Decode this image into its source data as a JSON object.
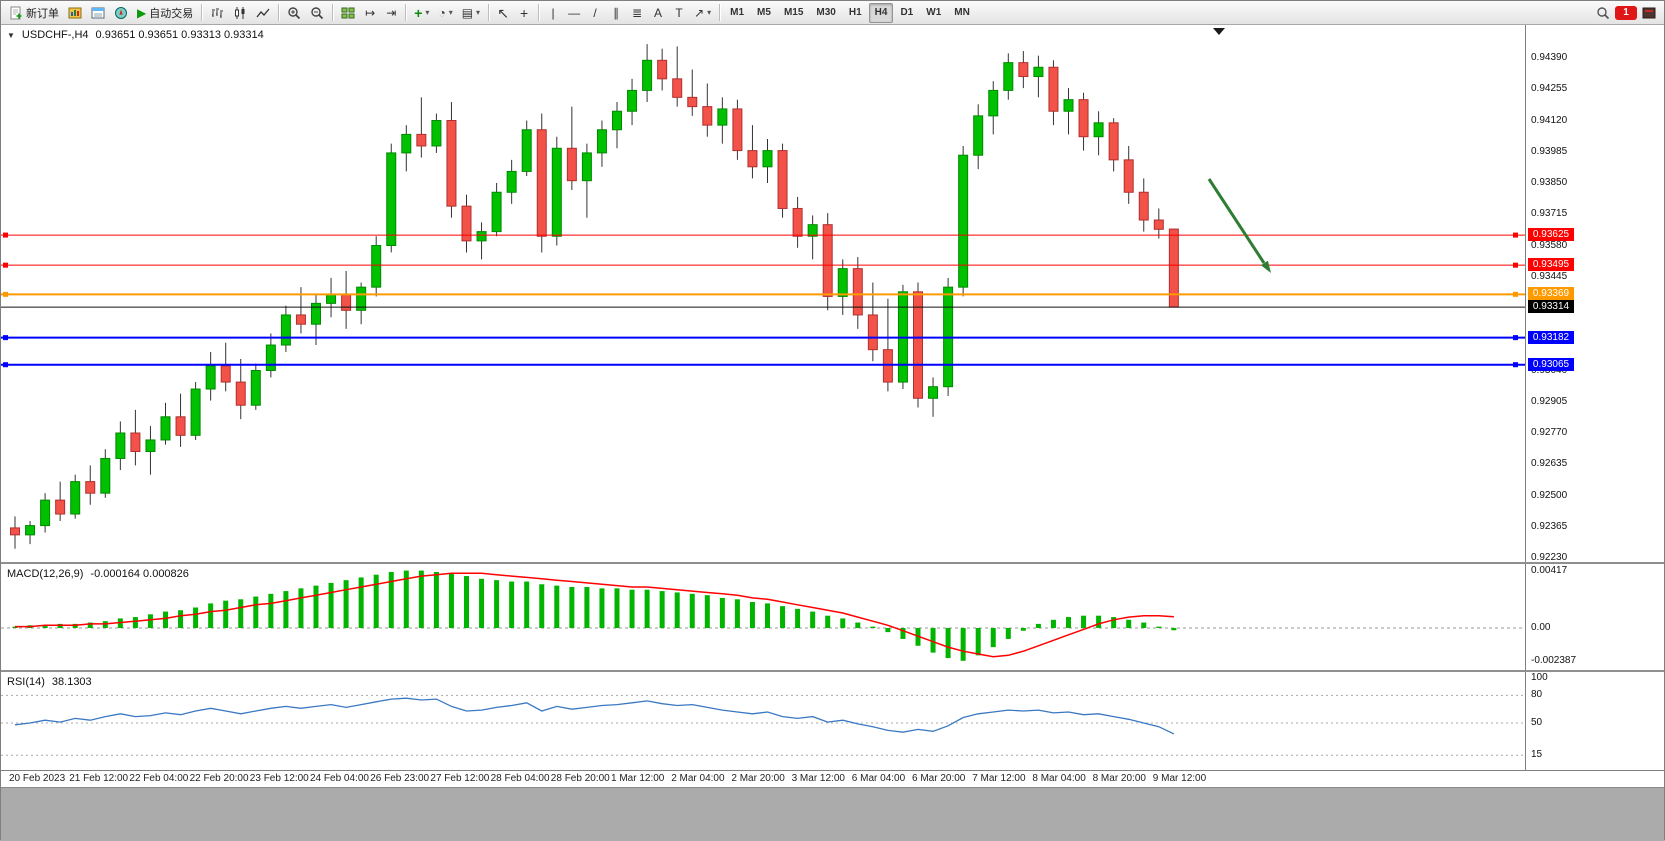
{
  "toolbar": {
    "new_order_label": "新订单",
    "autotrading_label": "自动交易",
    "timeframes": [
      "M1",
      "M5",
      "M15",
      "M30",
      "H1",
      "H4",
      "D1",
      "W1",
      "MN"
    ],
    "active_timeframe": "H4",
    "notification_count": "1"
  },
  "icons": {
    "collapse": "▼",
    "play": "▶",
    "dropdown": "▾",
    "indicator_plus": "+",
    "clock": "◔",
    "template": "▤",
    "cursor": "↖",
    "crosshair": "+",
    "vertical_line": "|",
    "horizontal_line": "—",
    "trendline": "/",
    "channel": "∥",
    "fibonacci": "≣",
    "text": "A",
    "text_label": "T",
    "arrows": "↗",
    "shift_end": "↦",
    "auto_scroll": "⇥"
  },
  "chart": {
    "symbol_title": "USDCHF-,H4",
    "ohlc_title": "0.93651 0.93651 0.93313 0.93314"
  },
  "macd": {
    "title": "MACD(12,26,9)",
    "values": "-0.000164 0.000826"
  },
  "rsi": {
    "title": "RSI(14)",
    "value": "38.1303"
  },
  "chart_data": [
    {
      "type": "candlestick",
      "symbol": "USDCHF-",
      "timeframe": "H4",
      "ohlc_display": {
        "open": "0.93651",
        "high": "0.93651",
        "low": "0.93313",
        "close": "0.93314"
      },
      "y_axis": {
        "top": 0.9439,
        "bottom": 0.9223,
        "step": 0.00135,
        "labels": [
          "0.94390",
          "0.94255",
          "0.94120",
          "0.93985",
          "0.93850",
          "0.93715",
          "0.93580",
          "0.93445",
          "0.93310",
          "0.93175",
          "0.93040",
          "0.92905",
          "0.92770",
          "0.92635",
          "0.92500",
          "0.92365",
          "0.92230"
        ]
      },
      "x_labels": [
        "20 Feb 2023",
        "21 Feb 12:00",
        "22 Feb 04:00",
        "22 Feb 20:00",
        "23 Feb 12:00",
        "24 Feb 04:00",
        "26 Feb 23:00",
        "27 Feb 12:00",
        "28 Feb 04:00",
        "28 Feb 20:00",
        "1 Mar 12:00",
        "2 Mar 04:00",
        "2 Mar 20:00",
        "3 Mar 12:00",
        "6 Mar 04:00",
        "6 Mar 20:00",
        "7 Mar 12:00",
        "8 Mar 04:00",
        "8 Mar 20:00",
        "9 Mar 12:00"
      ],
      "candles": [
        [
          0.9236,
          0.9241,
          0.9227,
          0.9233
        ],
        [
          0.9233,
          0.9239,
          0.9229,
          0.9237
        ],
        [
          0.9237,
          0.9251,
          0.9234,
          0.9248
        ],
        [
          0.9248,
          0.9256,
          0.9239,
          0.9242
        ],
        [
          0.9242,
          0.9259,
          0.924,
          0.9256
        ],
        [
          0.9256,
          0.9263,
          0.9246,
          0.9251
        ],
        [
          0.9251,
          0.927,
          0.9249,
          0.9266
        ],
        [
          0.9266,
          0.9282,
          0.9261,
          0.9277
        ],
        [
          0.9277,
          0.9287,
          0.9263,
          0.9269
        ],
        [
          0.9269,
          0.928,
          0.9259,
          0.9274
        ],
        [
          0.9274,
          0.929,
          0.9272,
          0.9284
        ],
        [
          0.9284,
          0.9294,
          0.9271,
          0.9276
        ],
        [
          0.9276,
          0.9299,
          0.9274,
          0.9296
        ],
        [
          0.9296,
          0.9312,
          0.9291,
          0.9306
        ],
        [
          0.9306,
          0.9316,
          0.9295,
          0.9299
        ],
        [
          0.9299,
          0.9309,
          0.9283,
          0.9289
        ],
        [
          0.9289,
          0.9307,
          0.9287,
          0.9304
        ],
        [
          0.9304,
          0.932,
          0.9301,
          0.9315
        ],
        [
          0.9315,
          0.9332,
          0.9312,
          0.9328
        ],
        [
          0.9328,
          0.934,
          0.932,
          0.9324
        ],
        [
          0.9324,
          0.9337,
          0.9315,
          0.9333
        ],
        [
          0.9333,
          0.9344,
          0.9327,
          0.9337
        ],
        [
          0.9337,
          0.9347,
          0.9322,
          0.933
        ],
        [
          0.933,
          0.9342,
          0.9324,
          0.934
        ],
        [
          0.934,
          0.9362,
          0.9336,
          0.9358
        ],
        [
          0.9358,
          0.9402,
          0.9355,
          0.9398
        ],
        [
          0.9398,
          0.941,
          0.939,
          0.9406
        ],
        [
          0.9406,
          0.9422,
          0.9396,
          0.9401
        ],
        [
          0.9401,
          0.9415,
          0.9398,
          0.9412
        ],
        [
          0.9412,
          0.942,
          0.937,
          0.9375
        ],
        [
          0.9375,
          0.938,
          0.9355,
          0.936
        ],
        [
          0.936,
          0.9368,
          0.9352,
          0.9364
        ],
        [
          0.9364,
          0.9385,
          0.9362,
          0.9381
        ],
        [
          0.9381,
          0.9395,
          0.9376,
          0.939
        ],
        [
          0.939,
          0.9412,
          0.9388,
          0.9408
        ],
        [
          0.9408,
          0.9415,
          0.9355,
          0.9362
        ],
        [
          0.9362,
          0.9405,
          0.9358,
          0.94
        ],
        [
          0.94,
          0.9418,
          0.9382,
          0.9386
        ],
        [
          0.9386,
          0.9402,
          0.937,
          0.9398
        ],
        [
          0.9398,
          0.9412,
          0.9392,
          0.9408
        ],
        [
          0.9408,
          0.942,
          0.94,
          0.9416
        ],
        [
          0.9416,
          0.943,
          0.941,
          0.9425
        ],
        [
          0.9425,
          0.9445,
          0.942,
          0.9438
        ],
        [
          0.9438,
          0.9443,
          0.9425,
          0.943
        ],
        [
          0.943,
          0.9444,
          0.9418,
          0.9422
        ],
        [
          0.9422,
          0.9434,
          0.9414,
          0.9418
        ],
        [
          0.9418,
          0.9428,
          0.9405,
          0.941
        ],
        [
          0.941,
          0.9422,
          0.9402,
          0.9417
        ],
        [
          0.9417,
          0.9421,
          0.9395,
          0.9399
        ],
        [
          0.9399,
          0.941,
          0.9387,
          0.9392
        ],
        [
          0.9392,
          0.9404,
          0.9385,
          0.9399
        ],
        [
          0.9399,
          0.9402,
          0.937,
          0.9374
        ],
        [
          0.9374,
          0.9379,
          0.9357,
          0.9362
        ],
        [
          0.9362,
          0.9371,
          0.9352,
          0.9367
        ],
        [
          0.9367,
          0.9372,
          0.933,
          0.9336
        ],
        [
          0.9336,
          0.9352,
          0.9328,
          0.9348
        ],
        [
          0.9348,
          0.9353,
          0.9322,
          0.9328
        ],
        [
          0.9328,
          0.9342,
          0.9308,
          0.9313
        ],
        [
          0.9313,
          0.9335,
          0.9295,
          0.9299
        ],
        [
          0.9299,
          0.9341,
          0.9296,
          0.9338
        ],
        [
          0.9338,
          0.9342,
          0.9288,
          0.9292
        ],
        [
          0.9292,
          0.9301,
          0.9284,
          0.9297
        ],
        [
          0.9297,
          0.9344,
          0.9293,
          0.934
        ],
        [
          0.934,
          0.9401,
          0.9336,
          0.9397
        ],
        [
          0.9397,
          0.9419,
          0.9391,
          0.9414
        ],
        [
          0.9414,
          0.9429,
          0.9406,
          0.9425
        ],
        [
          0.9425,
          0.9441,
          0.9421,
          0.9437
        ],
        [
          0.9437,
          0.9442,
          0.9426,
          0.9431
        ],
        [
          0.9431,
          0.944,
          0.9422,
          0.9435
        ],
        [
          0.9435,
          0.9438,
          0.941,
          0.9416
        ],
        [
          0.9416,
          0.9426,
          0.9406,
          0.9421
        ],
        [
          0.9421,
          0.9424,
          0.9399,
          0.9405
        ],
        [
          0.9405,
          0.9416,
          0.9397,
          0.9411
        ],
        [
          0.9411,
          0.9413,
          0.939,
          0.9395
        ],
        [
          0.9395,
          0.9401,
          0.9376,
          0.9381
        ],
        [
          0.9381,
          0.9387,
          0.9364,
          0.9369
        ],
        [
          0.9369,
          0.9374,
          0.9361,
          0.9365
        ],
        [
          0.93651,
          0.93651,
          0.93313,
          0.93314
        ]
      ],
      "hlines": [
        {
          "label": "0.93625",
          "value": 0.93625,
          "color": "#ff0000",
          "width": 1
        },
        {
          "label": "0.93495",
          "value": 0.93495,
          "color": "#ff0000",
          "width": 1
        },
        {
          "label": "0.93369",
          "value": 0.93369,
          "color": "#ff9900",
          "width": 2
        },
        {
          "label": "0.93182",
          "value": 0.93182,
          "color": "#0000ff",
          "width": 2
        },
        {
          "label": "0.93065",
          "value": 0.93065,
          "color": "#0000ff",
          "width": 2
        }
      ],
      "current_price": {
        "label": "0.93314",
        "value": 0.93314,
        "color": "#000000"
      },
      "annotation": {
        "type": "arrow",
        "direction": "down-right",
        "color": "#2e7d32"
      },
      "colors": {
        "up": "#00c100",
        "down": "#f25247",
        "up_border": "#008a00",
        "down_border": "#b03030",
        "wick": "#333333"
      }
    },
    {
      "type": "bar+line",
      "title": "MACD(12,26,9)",
      "values_display": "-0.000164 0.000826",
      "axis_labels": [
        "0.00417",
        "0.00",
        "-0.002387"
      ],
      "histogram": [
        0.0001,
        0.0002,
        0.0002,
        0.0003,
        0.0003,
        0.0004,
        0.0005,
        0.0007,
        0.0008,
        0.001,
        0.0012,
        0.0013,
        0.0015,
        0.0018,
        0.002,
        0.0021,
        0.0023,
        0.0025,
        0.0027,
        0.0029,
        0.0031,
        0.0033,
        0.0035,
        0.0037,
        0.0039,
        0.0041,
        0.0042,
        0.0042,
        0.0041,
        0.004,
        0.0038,
        0.0036,
        0.0035,
        0.0034,
        0.0034,
        0.0032,
        0.0031,
        0.003,
        0.003,
        0.0029,
        0.0029,
        0.0028,
        0.0028,
        0.0027,
        0.0026,
        0.0025,
        0.0024,
        0.0022,
        0.0021,
        0.0019,
        0.0018,
        0.0016,
        0.0014,
        0.0012,
        0.0009,
        0.0007,
        0.0004,
        0.0001,
        -0.0003,
        -0.0008,
        -0.0013,
        -0.0018,
        -0.0022,
        -0.0024,
        -0.002,
        -0.0014,
        -0.0008,
        -0.0002,
        0.0003,
        0.0006,
        0.0008,
        0.0009,
        0.0009,
        0.0008,
        0.0006,
        0.0004,
        0.0001,
        -0.000164
      ],
      "signal": [
        0.0001,
        0.0001,
        0.0002,
        0.0002,
        0.0002,
        0.0003,
        0.0003,
        0.0004,
        0.0005,
        0.0006,
        0.0007,
        0.0009,
        0.001,
        0.0012,
        0.0013,
        0.0015,
        0.0017,
        0.0018,
        0.002,
        0.0022,
        0.0024,
        0.0026,
        0.0028,
        0.003,
        0.0032,
        0.0034,
        0.0036,
        0.0038,
        0.0039,
        0.004,
        0.004,
        0.004,
        0.0039,
        0.0038,
        0.0037,
        0.0036,
        0.0035,
        0.0034,
        0.0033,
        0.0032,
        0.0031,
        0.003,
        0.003,
        0.0029,
        0.0028,
        0.0027,
        0.0026,
        0.0025,
        0.0024,
        0.0022,
        0.0021,
        0.0019,
        0.0017,
        0.0015,
        0.0013,
        0.0011,
        0.0008,
        0.0005,
        0.0002,
        -0.0002,
        -0.0006,
        -0.001,
        -0.0014,
        -0.0017,
        -0.0019,
        -0.0021,
        -0.002,
        -0.0017,
        -0.0013,
        -0.0009,
        -0.0005,
        -0.0001,
        0.0003,
        0.0006,
        0.0008,
        0.0009,
        0.0009,
        0.000826
      ],
      "colors": {
        "histogram": "#00b400",
        "signal": "#ff0000"
      }
    },
    {
      "type": "line",
      "title": "RSI(14)",
      "value_display": "38.1303",
      "axis_labels": [
        "100",
        "80",
        "50",
        "15"
      ],
      "level_lines": [
        80,
        50,
        15
      ],
      "values": [
        48,
        50,
        53,
        51,
        55,
        53,
        57,
        60,
        57,
        58,
        61,
        59,
        63,
        66,
        63,
        60,
        63,
        66,
        68,
        66,
        68,
        70,
        67,
        70,
        73,
        76,
        77,
        75,
        76,
        68,
        63,
        64,
        67,
        69,
        72,
        63,
        68,
        65,
        67,
        69,
        70,
        72,
        74,
        71,
        69,
        70,
        67,
        64,
        62,
        60,
        62,
        57,
        55,
        57,
        51,
        53,
        49,
        46,
        42,
        40,
        43,
        41,
        47,
        56,
        60,
        62,
        64,
        63,
        64,
        61,
        62,
        59,
        60,
        57,
        54,
        50,
        46,
        38.13
      ],
      "color": "#3b78c3"
    }
  ]
}
